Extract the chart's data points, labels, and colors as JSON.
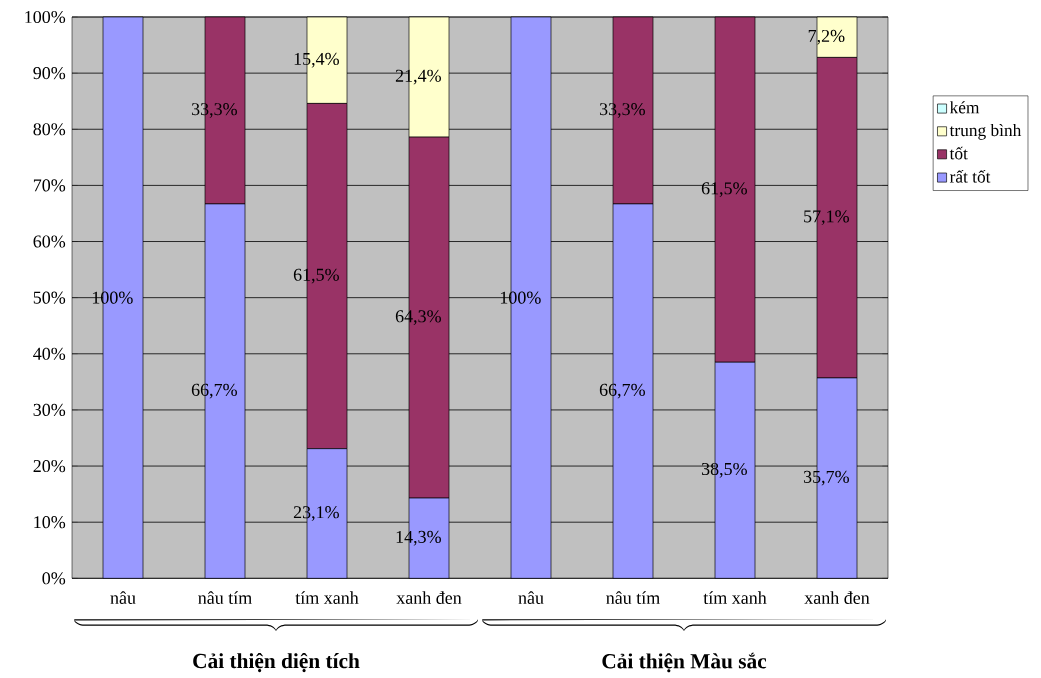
{
  "chart_data": {
    "type": "bar",
    "stacked": true,
    "categories": [
      "nâu",
      "nâu tím",
      "tím xanh",
      "xanh đen",
      "nâu",
      "nâu tím",
      "tím xanh",
      "xanh đen"
    ],
    "series": [
      {
        "name": "rất tốt",
        "color": "#9999ff",
        "values": [
          100,
          66.7,
          23.1,
          14.3,
          100,
          66.7,
          38.5,
          35.7
        ],
        "value_labels": [
          "100%",
          "66,7%",
          "23,1%",
          "14,3%",
          "100%",
          "66,7%",
          "38,5%",
          "35,7%"
        ]
      },
      {
        "name": "tốt",
        "color": "#993366",
        "values": [
          0,
          33.3,
          61.5,
          64.3,
          0,
          33.3,
          61.5,
          57.1
        ],
        "value_labels": [
          null,
          "33,3%",
          "61,5%",
          "64,3%",
          null,
          "33,3%",
          "61,5%",
          "57,1%"
        ]
      },
      {
        "name": "trung bình",
        "color": "#ffffcc",
        "values": [
          0,
          0,
          15.4,
          21.4,
          0,
          0,
          0,
          7.2
        ],
        "value_labels": [
          null,
          null,
          "15,4%",
          "21,4%",
          null,
          null,
          null,
          "7,2%"
        ]
      },
      {
        "name": "kém",
        "color": "#ccffff",
        "values": [
          0,
          0,
          0,
          0,
          0,
          0,
          0,
          0
        ],
        "value_labels": [
          null,
          null,
          null,
          null,
          null,
          null,
          null,
          null
        ]
      }
    ],
    "ylim": [
      0,
      100
    ],
    "yticks": [
      {
        "value": 0,
        "label": "0%"
      },
      {
        "value": 10,
        "label": "10%"
      },
      {
        "value": 20,
        "label": "20%"
      },
      {
        "value": 30,
        "label": "30%"
      },
      {
        "value": 40,
        "label": "40%"
      },
      {
        "value": 50,
        "label": "50%"
      },
      {
        "value": 60,
        "label": "60%"
      },
      {
        "value": 70,
        "label": "70%"
      },
      {
        "value": 80,
        "label": "80%"
      },
      {
        "value": 90,
        "label": "90%"
      },
      {
        "value": 100,
        "label": "100%"
      }
    ],
    "grid": "y",
    "legend": "right",
    "annotations": [
      "Cải thiện diện tích",
      "Cải thiện Màu sắc"
    ]
  }
}
